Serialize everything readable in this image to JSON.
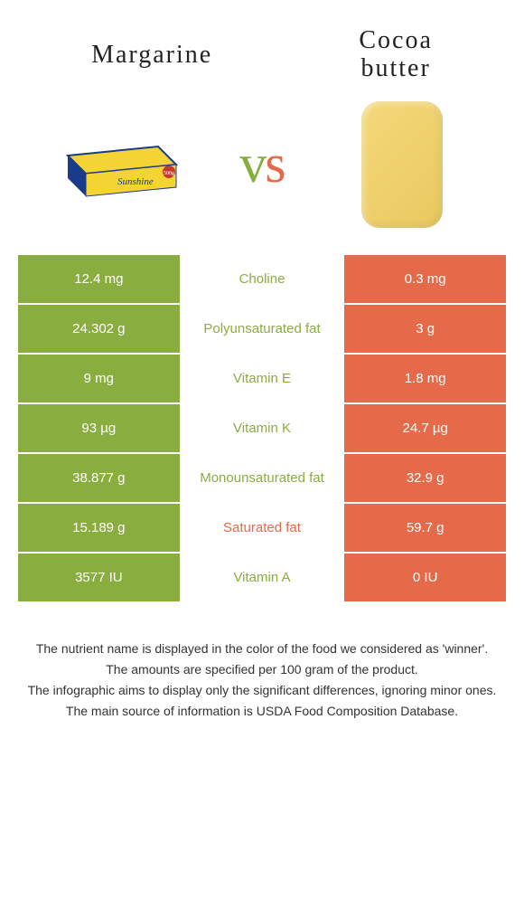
{
  "header": {
    "left_title": "Margarine",
    "right_title_line1": "Cocoa",
    "right_title_line2": "butter",
    "vs_v": "v",
    "vs_s": "s"
  },
  "colors": {
    "left_bg": "#8aad3f",
    "right_bg": "#e46a4a",
    "mid_text_left": "#8aad3f",
    "mid_text_right": "#e46a4a"
  },
  "rows": [
    {
      "left": "12.4 mg",
      "mid": "Choline",
      "right": "0.3 mg",
      "winner": "left"
    },
    {
      "left": "24.302 g",
      "mid": "Polyunsaturated fat",
      "right": "3 g",
      "winner": "left"
    },
    {
      "left": "9 mg",
      "mid": "Vitamin E",
      "right": "1.8 mg",
      "winner": "left"
    },
    {
      "left": "93 µg",
      "mid": "Vitamin K",
      "right": "24.7 µg",
      "winner": "left"
    },
    {
      "left": "38.877 g",
      "mid": "Monounsaturated fat",
      "right": "32.9 g",
      "winner": "left"
    },
    {
      "left": "15.189 g",
      "mid": "Saturated fat",
      "right": "59.7 g",
      "winner": "right"
    },
    {
      "left": "3577 IU",
      "mid": "Vitamin A",
      "right": "0 IU",
      "winner": "left"
    }
  ],
  "footer": {
    "line1": "The nutrient name is displayed in the color of the food we considered as 'winner'.",
    "line2": "The amounts are specified per 100 gram of the product.",
    "line3": "The infographic aims to display only the significant differences, ignoring minor ones.",
    "line4": "The main source of information is USDA Food Composition Database."
  }
}
